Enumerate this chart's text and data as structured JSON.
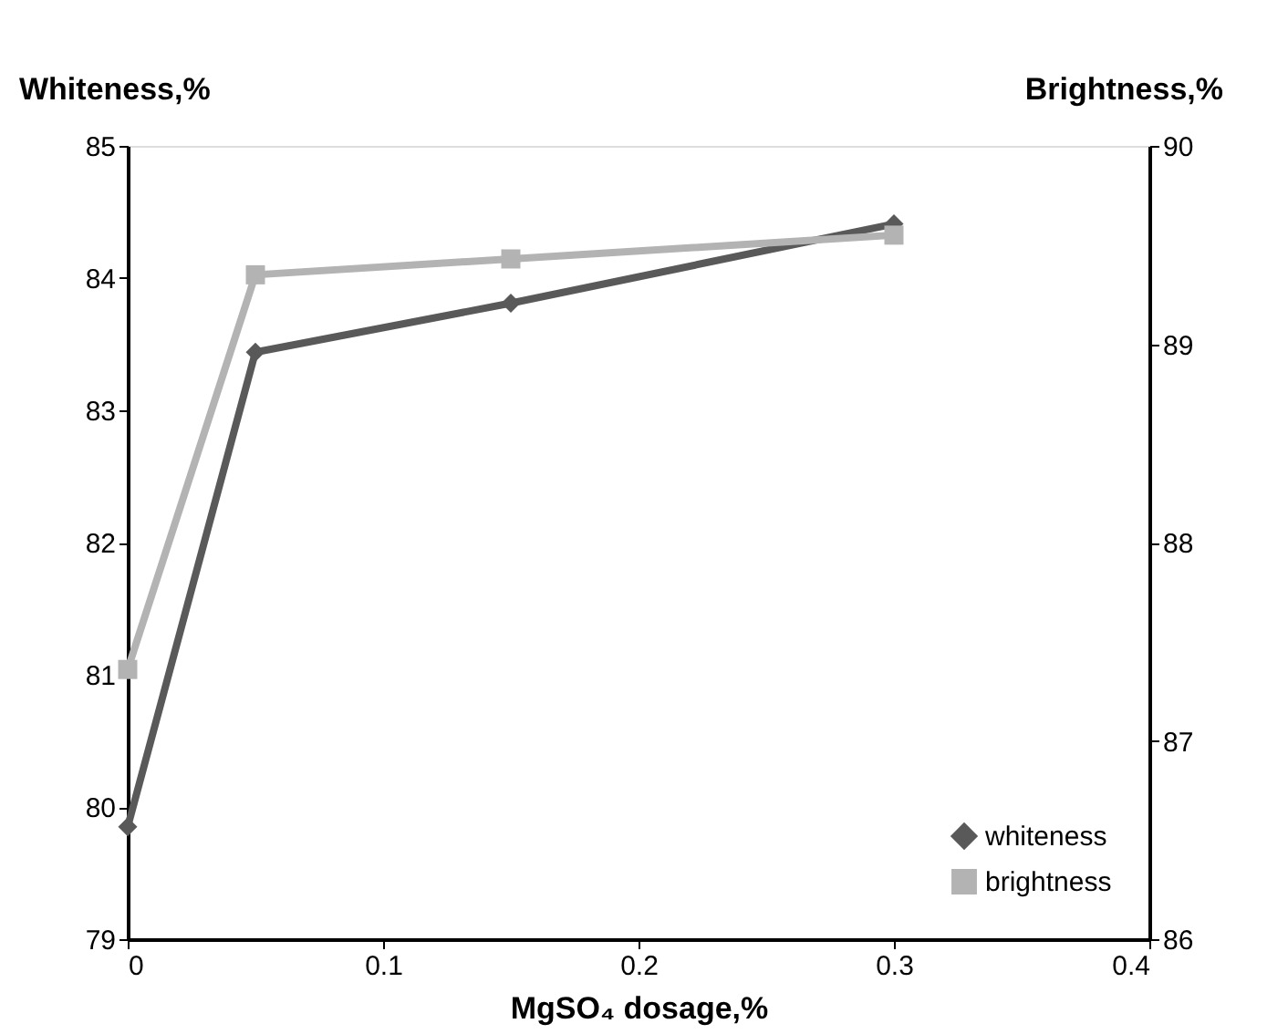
{
  "chart_data": {
    "type": "line",
    "xlabel": "MgSO₄ dosage,%",
    "ylabel": "Whiteness,%",
    "y2label": "Brightness,%",
    "x": [
      0,
      0.05,
      0.15,
      0.3
    ],
    "series": [
      {
        "name": "whiteness",
        "color": "#595959",
        "marker": "diamond",
        "values": [
          79.85,
          83.44,
          83.81,
          84.41
        ]
      },
      {
        "name": "brightness",
        "color": "#b3b3b3",
        "marker": "square",
        "axis": "y2",
        "values": [
          87.36,
          89.35,
          89.43,
          89.55
        ]
      }
    ],
    "xlim": [
      0,
      0.4
    ],
    "xticks": [
      0,
      0.1,
      0.2,
      0.3,
      0.4
    ],
    "ylim": [
      79,
      85
    ],
    "yticks": [
      79,
      80,
      81,
      82,
      83,
      84,
      85
    ],
    "y2lim": [
      86,
      90
    ],
    "y2ticks": [
      86,
      87,
      88,
      89,
      90
    ],
    "legend": "bottom right",
    "grid": false
  }
}
